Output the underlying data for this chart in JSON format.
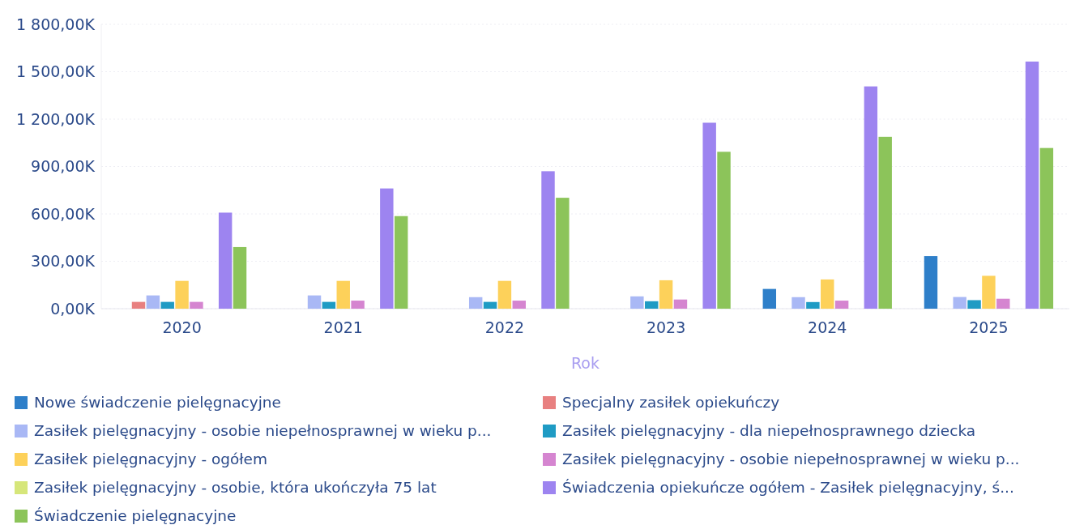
{
  "chart_data": {
    "type": "bar",
    "xlabel": "Rok",
    "categories": [
      "2020",
      "2021",
      "2022",
      "2023",
      "2024",
      "2025"
    ],
    "ylim": [
      0,
      1800
    ],
    "yticks": [
      {
        "value": 0,
        "label": "0,00K"
      },
      {
        "value": 300,
        "label": "300,00K"
      },
      {
        "value": 600,
        "label": "600,00K"
      },
      {
        "value": 900,
        "label": "900,00K"
      },
      {
        "value": 1200,
        "label": "1 200,00K"
      },
      {
        "value": 1500,
        "label": "1 500,00K"
      },
      {
        "value": 1800,
        "label": "1 800,00K"
      }
    ],
    "grid": "y",
    "legend": "bottom",
    "series": [
      {
        "name": "Nowe świadczenie pielęgnacyjne",
        "color": "#2e7fc9",
        "values": [
          null,
          null,
          null,
          null,
          125,
          333
        ]
      },
      {
        "name": "Specjalny zasiłek opiekuńczy",
        "color": "#e88080",
        "values": [
          43,
          null,
          null,
          null,
          null,
          null
        ]
      },
      {
        "name": "Zasiłek pielęgnacyjny -  osobie niepełnosprawnej w wieku p...",
        "color": "#a9b8f5",
        "values": [
          84,
          84,
          73,
          78,
          73,
          74
        ]
      },
      {
        "name": "Zasiłek pielęgnacyjny - dla niepełnosprawnego dziecka",
        "color": "#1f9bc4",
        "values": [
          43,
          43,
          43,
          47,
          42,
          54
        ]
      },
      {
        "name": "Zasiłek pielęgnacyjny - ogółem",
        "color": "#fdd15a",
        "values": [
          176,
          176,
          176,
          180,
          185,
          208
        ]
      },
      {
        "name": "Zasiłek pielęgnacyjny - osobie niepełnosprawnej w wieku p...",
        "color": "#d585d0",
        "values": [
          43,
          51,
          51,
          58,
          51,
          63
        ]
      },
      {
        "name": "Zasiłek pielęgnacyjny - osobie, która ukończyła 75 lat",
        "color": "#d6e67a",
        "values": [
          null,
          null,
          null,
          null,
          null,
          null
        ]
      },
      {
        "name": "Świadczenia opiekuńcze ogółem - Zasiłek pielęgnacyjny, ś...",
        "color": "#9d84f0",
        "values": [
          608,
          761,
          870,
          1177,
          1407,
          1564
        ]
      },
      {
        "name": "Świadczenie pielęgnacyjne",
        "color": "#8cc45a",
        "values": [
          390,
          586,
          702,
          993,
          1088,
          1017
        ]
      }
    ]
  }
}
